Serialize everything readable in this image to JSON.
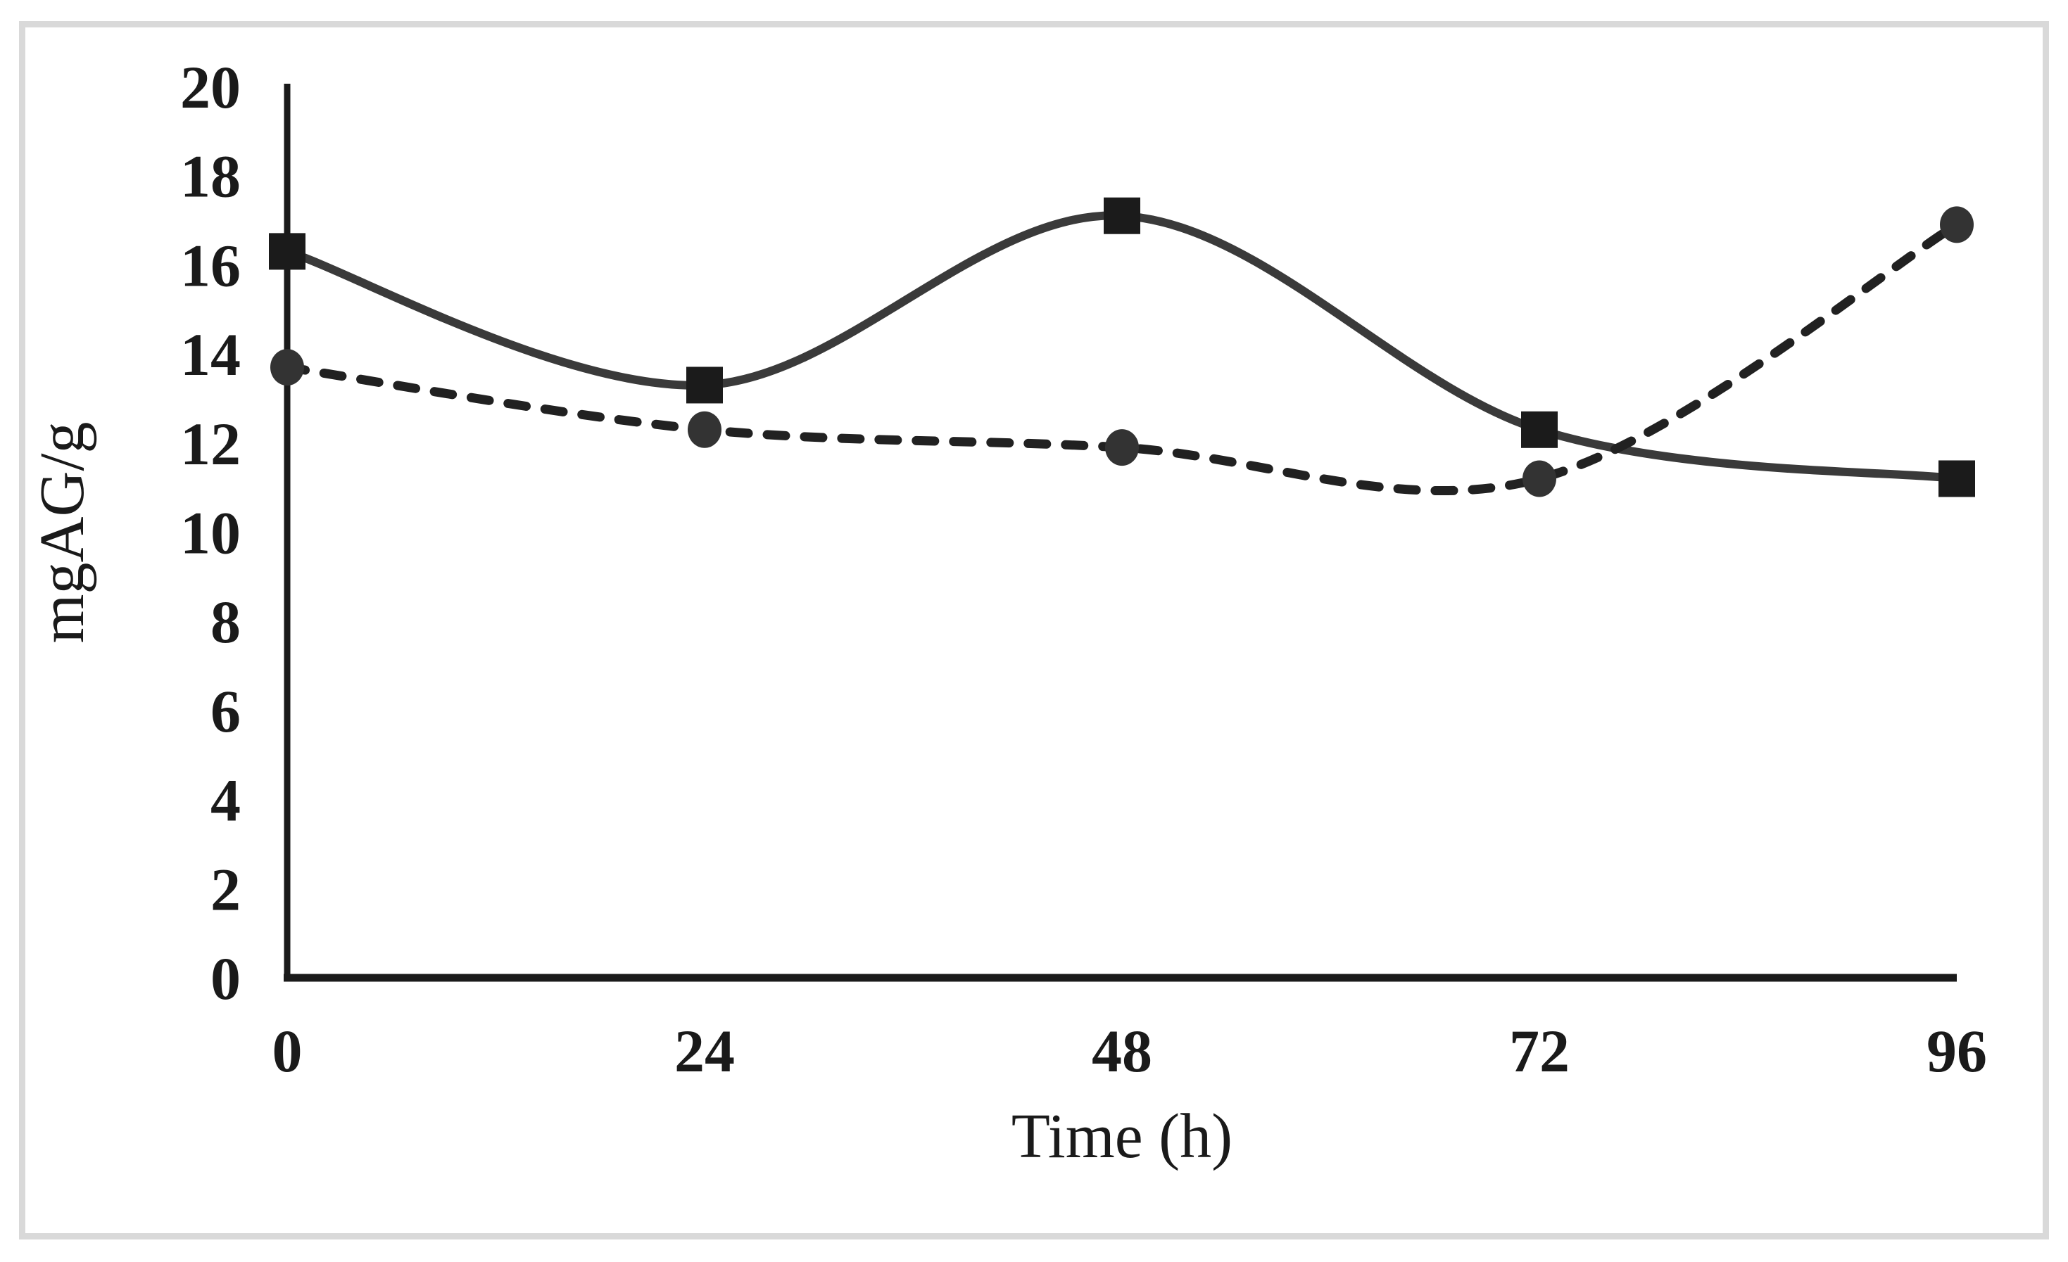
{
  "chart_data": {
    "type": "line",
    "x": [
      0,
      24,
      48,
      72,
      96
    ],
    "xtick_labels": [
      "0",
      "24",
      "48",
      "72",
      "96"
    ],
    "ytick_labels": [
      "0",
      "2",
      "4",
      "6",
      "8",
      "10",
      "12",
      "14",
      "16",
      "18",
      "20"
    ],
    "series": [
      {
        "name": "solid-square-series",
        "marker": "square",
        "line_style": "solid",
        "values": [
          16.3,
          13.3,
          17.1,
          12.3,
          11.2
        ]
      },
      {
        "name": "dashed-circle-series",
        "marker": "circle",
        "line_style": "dashed",
        "values": [
          13.7,
          12.3,
          11.9,
          11.2,
          16.9
        ]
      }
    ],
    "title": "",
    "xlabel": "Time (h)",
    "ylabel": "mgAG/g",
    "xlim": [
      0,
      96
    ],
    "ylim": [
      0,
      20
    ],
    "ytick_step": 2,
    "grid": false,
    "legend": "none",
    "curve": "smooth"
  },
  "colors": {
    "background": "#ffffff",
    "frame_border": "#d9d9d9",
    "axis": "#1a1a1a",
    "tick_text": "#1a1a1a",
    "solid_line": "#3a3a3a",
    "dashed_line": "#212121",
    "square_marker": "#1b1b1b",
    "circle_marker": "#333333"
  }
}
